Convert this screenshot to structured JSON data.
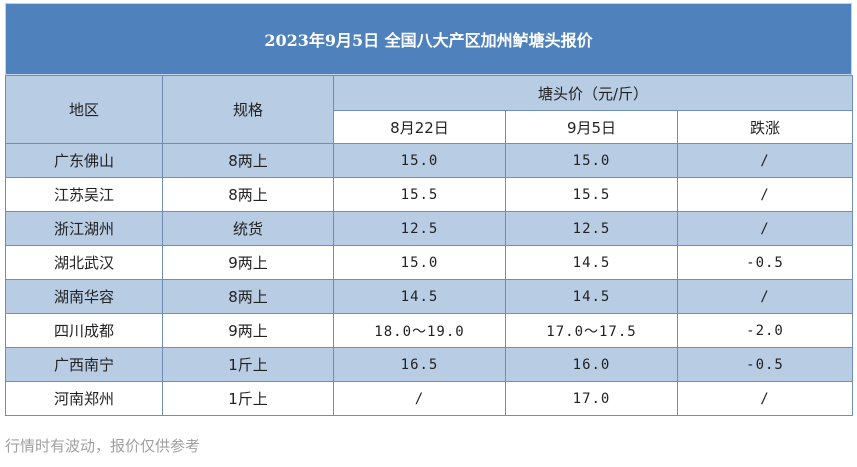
{
  "title": "2023年9月5日  全国八大产区加州鲈塘头报价",
  "headers": {
    "region": "地区",
    "spec": "规格",
    "price_group": "塘头价（元/斤）",
    "date1": "8月22日",
    "date2": "9月5日",
    "change": "跌涨"
  },
  "rows": [
    {
      "region": "广东佛山",
      "spec": "8两上",
      "p1": "15.0",
      "p2": "15.0",
      "change": "/"
    },
    {
      "region": "江苏吴江",
      "spec": "8两上",
      "p1": "15.5",
      "p2": "15.5",
      "change": "/"
    },
    {
      "region": "浙江湖州",
      "spec": "统货",
      "p1": "12.5",
      "p2": "12.5",
      "change": "/"
    },
    {
      "region": "湖北武汉",
      "spec": "9两上",
      "p1": "15.0",
      "p2": "14.5",
      "change": "-0.5"
    },
    {
      "region": "湖南华容",
      "spec": "8两上",
      "p1": "14.5",
      "p2": "14.5",
      "change": "/"
    },
    {
      "region": "四川成都",
      "spec": "9两上",
      "p1": "18.0～19.0",
      "p2": "17.0～17.5",
      "change": "-2.0"
    },
    {
      "region": "广西南宁",
      "spec": "1斤上",
      "p1": "16.5",
      "p2": "16.0",
      "change": "-0.5"
    },
    {
      "region": "河南郑州",
      "spec": "1斤上",
      "p1": "/",
      "p2": "17.0",
      "change": "/"
    }
  ],
  "note": "行情时有波动，报价仅供参考",
  "colors": {
    "title_bg": "#4f81bd",
    "stripe": "#b8cce4",
    "border": "#6f8fb8"
  }
}
